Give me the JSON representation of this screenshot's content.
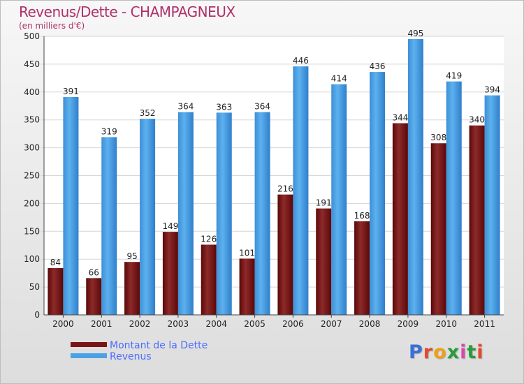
{
  "title": "Revenus/Dette - CHAMPAGNEUX",
  "subtitle": "(en milliers d'€)",
  "legend": [
    {
      "label": "Montant de la Dette",
      "color": "#7a1515"
    },
    {
      "label": "Revenus",
      "color": "#4aa2e4"
    }
  ],
  "logo": {
    "text": "Proxiti",
    "letter_colors": [
      "#3a6fd8",
      "#e24a2a",
      "#f0a019",
      "#2a9c3a",
      "#d64aa8",
      "#2a9c3a",
      "#e24a2a"
    ]
  },
  "chart_data": {
    "type": "bar",
    "title": "Revenus/Dette - CHAMPAGNEUX",
    "subtitle": "(en milliers d'€)",
    "categories": [
      "2000",
      "2001",
      "2002",
      "2003",
      "2004",
      "2005",
      "2006",
      "2007",
      "2008",
      "2009",
      "2010",
      "2011"
    ],
    "series": [
      {
        "name": "Montant de la Dette",
        "color": "#7a1515",
        "values": [
          84,
          66,
          95,
          149,
          126,
          101,
          216,
          191,
          168,
          344,
          308,
          340
        ]
      },
      {
        "name": "Revenus",
        "color": "#4aa2e4",
        "values": [
          391,
          319,
          352,
          364,
          363,
          364,
          446,
          414,
          436,
          495,
          419,
          394
        ]
      }
    ],
    "ylim": [
      0,
      500
    ],
    "yticks": [
      0,
      50,
      100,
      150,
      200,
      250,
      300,
      350,
      400,
      450,
      500
    ],
    "grid": true,
    "legend_position": "bottom-left"
  }
}
